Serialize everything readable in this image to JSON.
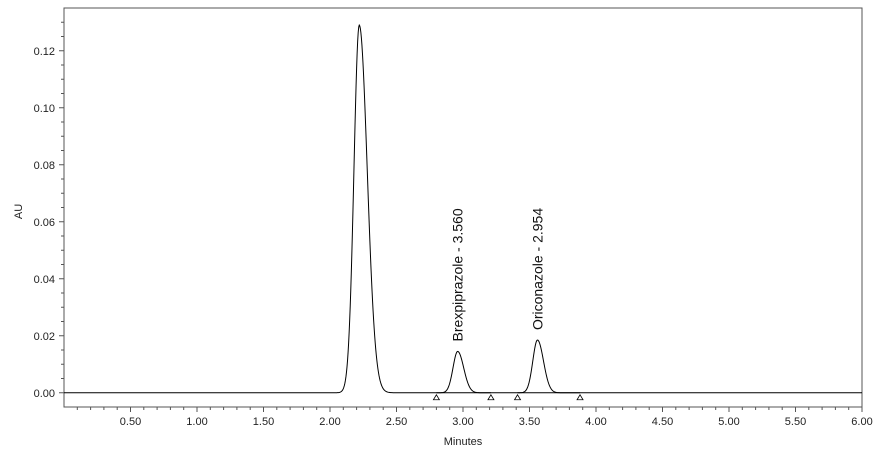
{
  "chart_data": {
    "type": "line",
    "xlabel": "Minutes",
    "ylabel": "AU",
    "xlim": [
      0,
      6.0
    ],
    "ylim": [
      -0.005,
      0.135
    ],
    "x_ticks": [
      "0.50",
      "1.00",
      "1.50",
      "2.00",
      "2.50",
      "3.00",
      "3.50",
      "4.00",
      "4.50",
      "5.00",
      "5.50",
      "6.00"
    ],
    "y_ticks": [
      "0.00",
      "0.02",
      "0.04",
      "0.06",
      "0.08",
      "0.10",
      "0.12"
    ],
    "grid": false,
    "series": [
      {
        "color": "#000000",
        "baseline": 0.0,
        "peaks": [
          {
            "rt": 2.22,
            "height": 0.129,
            "sigma_left": 0.04,
            "sigma_right": 0.06
          },
          {
            "rt": 2.96,
            "height": 0.0145,
            "sigma_left": 0.035,
            "sigma_right": 0.045
          },
          {
            "rt": 3.56,
            "height": 0.0185,
            "sigma_left": 0.035,
            "sigma_right": 0.045
          }
        ]
      }
    ],
    "annotations": [
      {
        "text": "Brexpiprazole - 3.560",
        "x": 2.96,
        "y": 0.018
      },
      {
        "text": "Oriconazole - 2.954",
        "x": 3.56,
        "y": 0.022
      }
    ],
    "integration_markers": [
      {
        "start": 2.8,
        "end": 3.21
      },
      {
        "start": 3.41,
        "end": 3.88
      }
    ]
  }
}
